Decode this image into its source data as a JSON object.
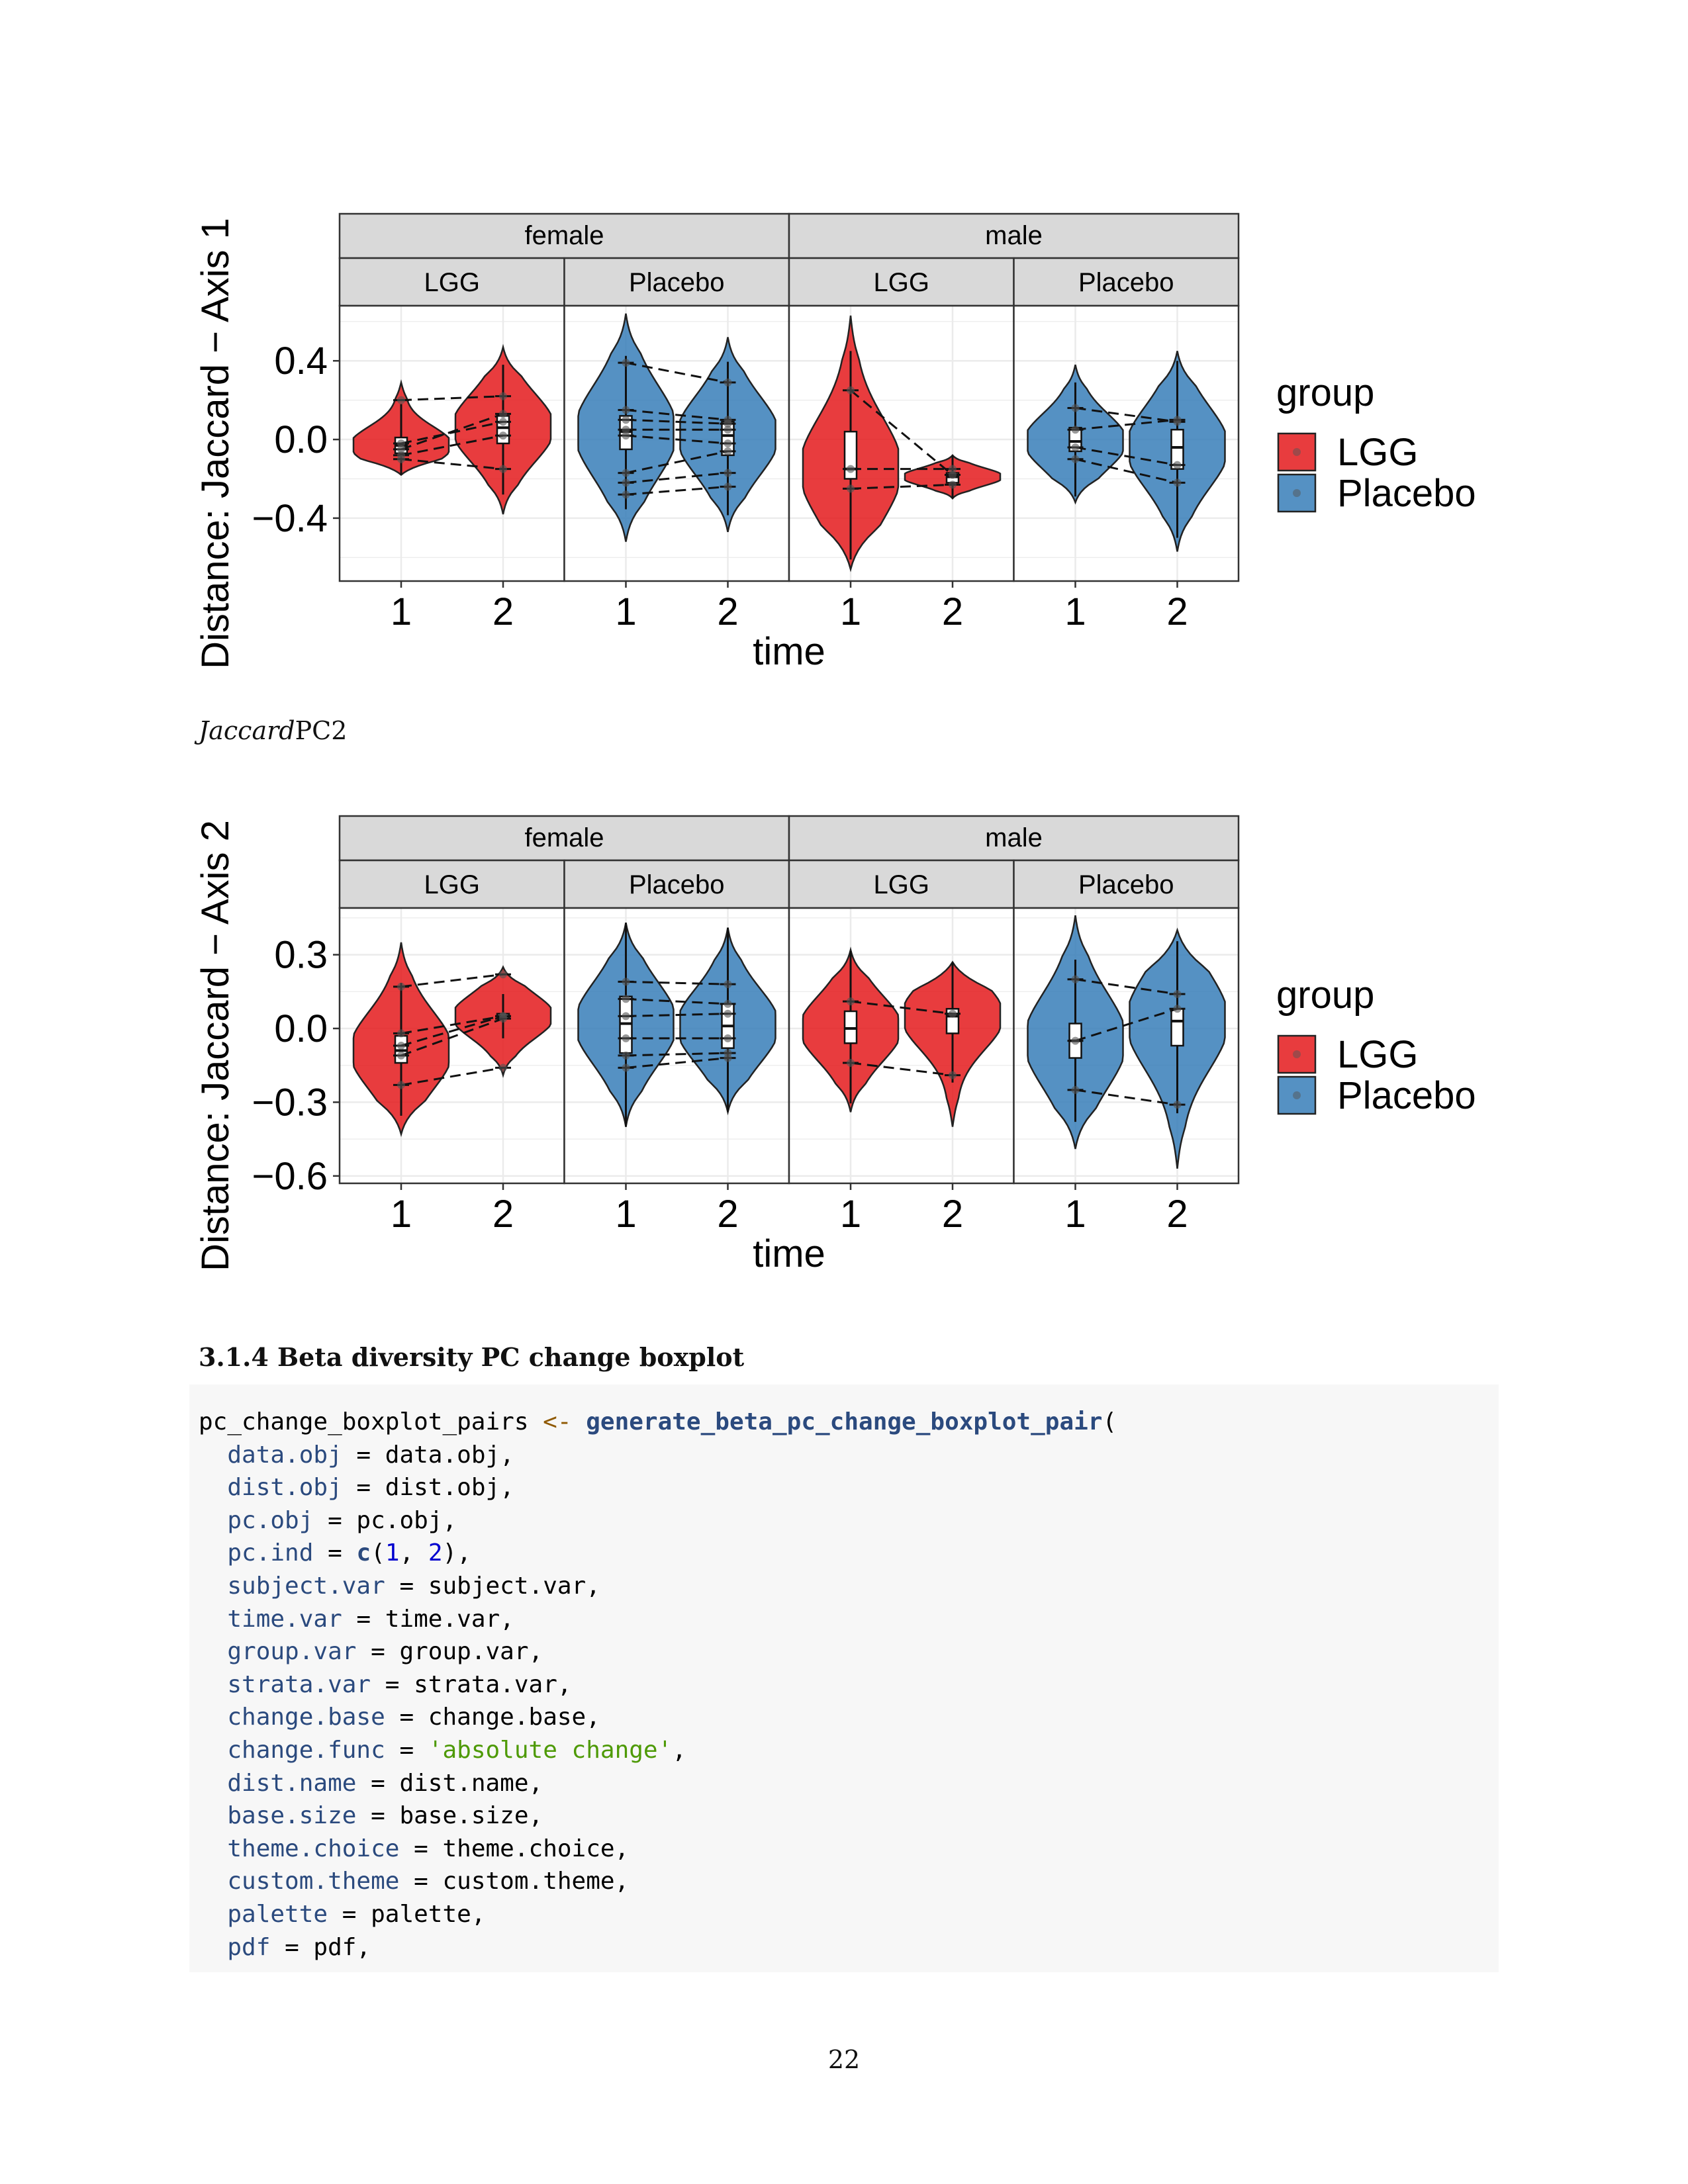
{
  "chart_data": [
    {
      "type": "violin",
      "ylabel": "Distance: Jaccard  − Axis 1",
      "xlabel": "time",
      "strata": [
        {
          "name": "female",
          "groups": [
            "LGG",
            "Placebo"
          ]
        },
        {
          "name": "male",
          "groups": [
            "LGG",
            "Placebo"
          ]
        }
      ],
      "x_ticks": [
        "1",
        "2"
      ],
      "y_ticks": [
        0.4,
        0.0,
        -0.4
      ],
      "y_tick_labels": [
        "0.4",
        "0.0",
        "−0.4"
      ],
      "ylim": [
        -0.72,
        0.68
      ],
      "legend": {
        "title": "group",
        "entries": [
          "LGG",
          "Placebo"
        ],
        "position": "right"
      },
      "panels": [
        {
          "strata": "female",
          "group": "LGG",
          "color": "#E41A1C",
          "violins": [
            {
              "time": "1",
              "min": -0.18,
              "max": 0.29,
              "median": -0.03,
              "q1": -0.07,
              "q3": 0.01
            },
            {
              "time": "2",
              "min": -0.38,
              "max": 0.47,
              "median": 0.06,
              "q1": -0.02,
              "q3": 0.12
            }
          ],
          "pairs": [
            [
              0.2,
              0.22
            ],
            [
              -0.05,
              0.13
            ],
            [
              -0.02,
              0.09
            ],
            [
              -0.08,
              0.02
            ],
            [
              -0.1,
              -0.15
            ]
          ]
        },
        {
          "strata": "female",
          "group": "Placebo",
          "color": "#377EB8",
          "violins": [
            {
              "time": "1",
              "min": -0.52,
              "max": 0.64,
              "median": 0.04,
              "q1": -0.05,
              "q3": 0.12
            },
            {
              "time": "2",
              "min": -0.47,
              "max": 0.52,
              "median": 0.02,
              "q1": -0.08,
              "q3": 0.09
            }
          ],
          "pairs": [
            [
              0.39,
              0.29
            ],
            [
              0.15,
              0.1
            ],
            [
              0.1,
              0.08
            ],
            [
              0.05,
              0.05
            ],
            [
              0.02,
              -0.02
            ],
            [
              -0.17,
              -0.06
            ],
            [
              -0.22,
              -0.17
            ],
            [
              -0.28,
              -0.24
            ]
          ]
        },
        {
          "strata": "male",
          "group": "LGG",
          "color": "#E41A1C",
          "violins": [
            {
              "time": "1",
              "min": -0.66,
              "max": 0.63,
              "median": -0.15,
              "q1": -0.2,
              "q3": 0.04
            },
            {
              "time": "2",
              "min": -0.3,
              "max": -0.08,
              "median": -0.19,
              "q1": -0.22,
              "q3": -0.17
            }
          ],
          "pairs": [
            [
              0.25,
              -0.18
            ],
            [
              -0.15,
              -0.15
            ],
            [
              -0.25,
              -0.23
            ]
          ]
        },
        {
          "strata": "male",
          "group": "Placebo",
          "color": "#377EB8",
          "violins": [
            {
              "time": "1",
              "min": -0.32,
              "max": 0.38,
              "median": -0.01,
              "q1": -0.06,
              "q3": 0.06
            },
            {
              "time": "2",
              "min": -0.57,
              "max": 0.45,
              "median": -0.04,
              "q1": -0.15,
              "q3": 0.05
            }
          ],
          "pairs": [
            [
              0.16,
              0.09
            ],
            [
              0.05,
              0.1
            ],
            [
              -0.04,
              -0.13
            ],
            [
              -0.1,
              -0.22
            ]
          ]
        }
      ]
    },
    {
      "type": "violin",
      "ylabel": "Distance: Jaccard  − Axis 2",
      "xlabel": "time",
      "strata": [
        {
          "name": "female",
          "groups": [
            "LGG",
            "Placebo"
          ]
        },
        {
          "name": "male",
          "groups": [
            "LGG",
            "Placebo"
          ]
        }
      ],
      "x_ticks": [
        "1",
        "2"
      ],
      "y_ticks": [
        0.3,
        0.0,
        -0.3,
        -0.6
      ],
      "y_tick_labels": [
        "0.3",
        "0.0",
        "−0.3",
        "−0.6"
      ],
      "ylim": [
        -0.63,
        0.49
      ],
      "legend": {
        "title": "group",
        "entries": [
          "LGG",
          "Placebo"
        ],
        "position": "right"
      },
      "panels": [
        {
          "strata": "female",
          "group": "LGG",
          "color": "#E41A1C",
          "violins": [
            {
              "time": "1",
              "min": -0.43,
              "max": 0.35,
              "median": -0.09,
              "q1": -0.14,
              "q3": -0.03
            },
            {
              "time": "2",
              "min": -0.19,
              "max": 0.25,
              "median": 0.05,
              "q1": 0.04,
              "q3": 0.06
            }
          ],
          "pairs": [
            [
              0.17,
              0.22
            ],
            [
              -0.02,
              0.05
            ],
            [
              -0.07,
              0.05
            ],
            [
              -0.11,
              0.04
            ],
            [
              -0.23,
              -0.16
            ]
          ]
        },
        {
          "strata": "female",
          "group": "Placebo",
          "color": "#377EB8",
          "violins": [
            {
              "time": "1",
              "min": -0.4,
              "max": 0.43,
              "median": 0.02,
              "q1": -0.1,
              "q3": 0.13
            },
            {
              "time": "2",
              "min": -0.34,
              "max": 0.41,
              "median": 0.01,
              "q1": -0.08,
              "q3": 0.1
            }
          ],
          "pairs": [
            [
              0.19,
              0.18
            ],
            [
              0.12,
              0.1
            ],
            [
              0.05,
              0.06
            ],
            [
              -0.04,
              -0.04
            ],
            [
              -0.11,
              -0.1
            ],
            [
              -0.16,
              -0.12
            ]
          ]
        },
        {
          "strata": "male",
          "group": "LGG",
          "color": "#E41A1C",
          "violins": [
            {
              "time": "1",
              "min": -0.34,
              "max": 0.32,
              "median": 0.0,
              "q1": -0.06,
              "q3": 0.07
            },
            {
              "time": "2",
              "min": -0.4,
              "max": 0.27,
              "median": 0.05,
              "q1": -0.02,
              "q3": 0.08
            }
          ],
          "pairs": [
            [
              0.11,
              0.06
            ],
            [
              -0.14,
              -0.19
            ]
          ]
        },
        {
          "strata": "male",
          "group": "Placebo",
          "color": "#377EB8",
          "violins": [
            {
              "time": "1",
              "min": -0.49,
              "max": 0.46,
              "median": -0.05,
              "q1": -0.12,
              "q3": 0.02
            },
            {
              "time": "2",
              "min": -0.57,
              "max": 0.4,
              "median": 0.03,
              "q1": -0.07,
              "q3": 0.08
            }
          ],
          "pairs": [
            [
              0.2,
              0.14
            ],
            [
              -0.05,
              0.08
            ],
            [
              -0.25,
              -0.31
            ]
          ]
        }
      ]
    }
  ],
  "caption": {
    "italic": "Jaccard",
    "plain": "PC2"
  },
  "section_title": "3.1.4 Beta diversity PC change boxplot",
  "code": {
    "lines": [
      [
        {
          "t": "pc_change_boxplot_pairs ",
          "c": ""
        },
        {
          "t": "<-",
          "c": "op"
        },
        {
          "t": " ",
          "c": ""
        },
        {
          "t": "generate_beta_pc_change_boxplot_pair",
          "c": "fn"
        },
        {
          "t": "(",
          "c": ""
        }
      ],
      [
        {
          "t": "  ",
          "c": ""
        },
        {
          "t": "data.obj",
          "c": "kw"
        },
        {
          "t": " = data.obj,",
          "c": ""
        }
      ],
      [
        {
          "t": "  ",
          "c": ""
        },
        {
          "t": "dist.obj",
          "c": "kw"
        },
        {
          "t": " = dist.obj,",
          "c": ""
        }
      ],
      [
        {
          "t": "  ",
          "c": ""
        },
        {
          "t": "pc.obj",
          "c": "kw"
        },
        {
          "t": " = pc.obj,",
          "c": ""
        }
      ],
      [
        {
          "t": "  ",
          "c": ""
        },
        {
          "t": "pc.ind",
          "c": "kw"
        },
        {
          "t": " = ",
          "c": ""
        },
        {
          "t": "c",
          "c": "fn"
        },
        {
          "t": "(",
          "c": ""
        },
        {
          "t": "1",
          "c": "num"
        },
        {
          "t": ", ",
          "c": ""
        },
        {
          "t": "2",
          "c": "num"
        },
        {
          "t": "),",
          "c": ""
        }
      ],
      [
        {
          "t": "  ",
          "c": ""
        },
        {
          "t": "subject.var",
          "c": "kw"
        },
        {
          "t": " = subject.var,",
          "c": ""
        }
      ],
      [
        {
          "t": "  ",
          "c": ""
        },
        {
          "t": "time.var",
          "c": "kw"
        },
        {
          "t": " = time.var,",
          "c": ""
        }
      ],
      [
        {
          "t": "  ",
          "c": ""
        },
        {
          "t": "group.var",
          "c": "kw"
        },
        {
          "t": " = group.var,",
          "c": ""
        }
      ],
      [
        {
          "t": "  ",
          "c": ""
        },
        {
          "t": "strata.var",
          "c": "kw"
        },
        {
          "t": " = strata.var,",
          "c": ""
        }
      ],
      [
        {
          "t": "  ",
          "c": ""
        },
        {
          "t": "change.base",
          "c": "kw"
        },
        {
          "t": " = change.base,",
          "c": ""
        }
      ],
      [
        {
          "t": "  ",
          "c": ""
        },
        {
          "t": "change.func",
          "c": "kw"
        },
        {
          "t": " = ",
          "c": ""
        },
        {
          "t": "'absolute change'",
          "c": "str"
        },
        {
          "t": ",",
          "c": ""
        }
      ],
      [
        {
          "t": "  ",
          "c": ""
        },
        {
          "t": "dist.name",
          "c": "kw"
        },
        {
          "t": " = dist.name,",
          "c": ""
        }
      ],
      [
        {
          "t": "  ",
          "c": ""
        },
        {
          "t": "base.size",
          "c": "kw"
        },
        {
          "t": " = base.size,",
          "c": ""
        }
      ],
      [
        {
          "t": "  ",
          "c": ""
        },
        {
          "t": "theme.choice",
          "c": "kw"
        },
        {
          "t": " = theme.choice,",
          "c": ""
        }
      ],
      [
        {
          "t": "  ",
          "c": ""
        },
        {
          "t": "custom.theme",
          "c": "kw"
        },
        {
          "t": " = custom.theme,",
          "c": ""
        }
      ],
      [
        {
          "t": "  ",
          "c": ""
        },
        {
          "t": "palette",
          "c": "kw"
        },
        {
          "t": " = palette,",
          "c": ""
        }
      ],
      [
        {
          "t": "  ",
          "c": ""
        },
        {
          "t": "pdf",
          "c": "kw"
        },
        {
          "t": " = pdf,",
          "c": ""
        }
      ]
    ]
  },
  "page_number": "22"
}
